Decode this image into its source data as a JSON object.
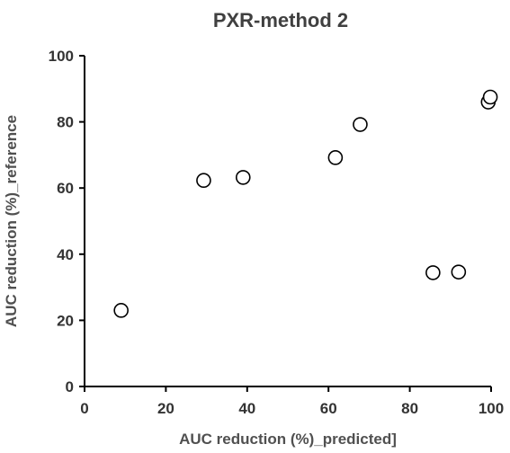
{
  "chart_data": {
    "type": "scatter",
    "title": "PXR-method 2",
    "xlabel": "AUC reduction (%)_predicted]",
    "ylabel": "AUC reduction (%)_reference",
    "xlim": [
      0,
      100
    ],
    "ylim": [
      0,
      100
    ],
    "xticks": [
      0,
      20,
      40,
      60,
      80,
      100
    ],
    "yticks": [
      0,
      20,
      40,
      60,
      80,
      100
    ],
    "grid": false,
    "legend": false,
    "marker": "open-circle",
    "colors": {
      "marker_edge": "#000000",
      "marker_fill": "#ffffff",
      "axis": "#000000",
      "title": "#404040",
      "label": "#505050"
    },
    "points": [
      {
        "x": 9.0,
        "y": 23.0
      },
      {
        "x": 29.3,
        "y": 62.3
      },
      {
        "x": 39.0,
        "y": 63.2
      },
      {
        "x": 61.7,
        "y": 69.2
      },
      {
        "x": 67.8,
        "y": 79.2
      },
      {
        "x": 85.7,
        "y": 34.4
      },
      {
        "x": 92.0,
        "y": 34.6
      },
      {
        "x": 99.3,
        "y": 86.0
      },
      {
        "x": 99.8,
        "y": 87.5
      }
    ]
  }
}
